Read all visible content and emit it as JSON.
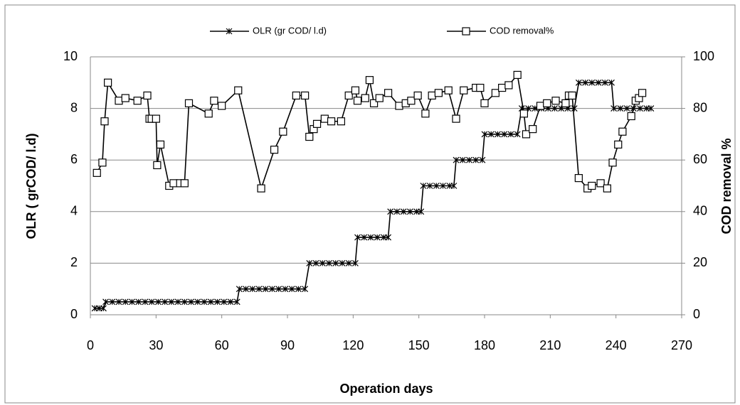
{
  "chart_data": {
    "type": "line",
    "xlabel": "Operation days",
    "ylabel": "OLR ( grCOD/ l.d)",
    "y2label": "COD removal %",
    "xlim": [
      0,
      270
    ],
    "xticks": [
      0,
      30,
      60,
      90,
      120,
      150,
      180,
      210,
      240,
      270
    ],
    "ylim": [
      0,
      10
    ],
    "yticks": [
      0,
      2,
      4,
      6,
      8,
      10
    ],
    "y2lim": [
      0,
      100
    ],
    "y2ticks": [
      0,
      20,
      40,
      60,
      80,
      100
    ],
    "grid": true,
    "legend": "top",
    "series": [
      {
        "name": "OLR (gr COD/ l.d)",
        "color": "#000000",
        "marker": "x",
        "x": [
          2,
          4,
          6,
          7,
          10,
          13,
          16,
          19,
          22,
          25,
          28,
          31,
          34,
          37,
          40,
          43,
          46,
          49,
          52,
          55,
          58,
          61,
          64,
          67,
          68,
          71,
          74,
          77,
          80,
          83,
          86,
          89,
          92,
          95,
          98,
          100,
          103,
          106,
          109,
          112,
          115,
          118,
          121,
          122,
          125,
          128,
          131,
          134,
          136,
          137,
          140,
          143,
          146,
          149,
          151,
          152,
          155,
          158,
          161,
          164,
          166,
          167,
          170,
          173,
          176,
          179,
          180,
          183,
          186,
          189,
          192,
          195,
          197,
          200,
          203,
          206,
          209,
          212,
          215,
          218,
          221,
          223,
          226,
          229,
          232,
          235,
          238,
          239,
          242,
          245,
          248,
          251,
          254,
          256
        ],
        "values": [
          0.25,
          0.25,
          0.25,
          0.5,
          0.5,
          0.5,
          0.5,
          0.5,
          0.5,
          0.5,
          0.5,
          0.5,
          0.5,
          0.5,
          0.5,
          0.5,
          0.5,
          0.5,
          0.5,
          0.5,
          0.5,
          0.5,
          0.5,
          0.5,
          1,
          1,
          1,
          1,
          1,
          1,
          1,
          1,
          1,
          1,
          1,
          2,
          2,
          2,
          2,
          2,
          2,
          2,
          2,
          3,
          3,
          3,
          3,
          3,
          3,
          4,
          4,
          4,
          4,
          4,
          4,
          5,
          5,
          5,
          5,
          5,
          5,
          6,
          6,
          6,
          6,
          6,
          7,
          7,
          7,
          7,
          7,
          7,
          8,
          8,
          8,
          8,
          8,
          8,
          8,
          8,
          8,
          9,
          9,
          9,
          9,
          9,
          9,
          8,
          8,
          8,
          8,
          8,
          8,
          8
        ]
      },
      {
        "name": "COD removal%",
        "color": "#000000",
        "marker": "square",
        "axis": "y2",
        "x": [
          3,
          5.5,
          6.5,
          8,
          13,
          16,
          21.5,
          26,
          27,
          28,
          30,
          30.5,
          32,
          36,
          38,
          41,
          43,
          45,
          54,
          56.5,
          60,
          67.5,
          78,
          84,
          88,
          94,
          98,
          100,
          102,
          103.5,
          107,
          110,
          114.5,
          118,
          121,
          122,
          125.5,
          127.5,
          129.5,
          132,
          136,
          141,
          144,
          146.5,
          149.5,
          153,
          156,
          159,
          163.5,
          167,
          170.5,
          176,
          178,
          180,
          185,
          188,
          191,
          195,
          198,
          199,
          202,
          205.5,
          208.5,
          212.5,
          217,
          218.5,
          220,
          223,
          227,
          229,
          233,
          236,
          238.5,
          241,
          243,
          247,
          249,
          250.5,
          252
        ],
        "values": [
          55,
          59,
          75,
          90,
          83,
          84,
          83,
          85,
          76,
          76,
          76,
          58,
          66,
          50,
          51,
          51,
          51,
          82,
          78,
          83,
          81,
          87,
          49,
          64,
          71,
          85,
          85,
          69,
          72,
          74,
          76,
          75,
          75,
          85,
          87,
          83,
          84,
          91,
          82,
          84,
          86,
          81,
          82,
          83,
          85,
          78,
          85,
          86,
          87,
          76,
          87,
          88,
          88,
          82,
          86,
          88,
          89,
          93,
          78,
          70,
          72,
          81,
          82,
          83,
          82,
          85,
          85,
          53,
          49,
          50,
          51,
          49,
          59,
          66,
          71,
          77,
          83,
          84,
          86
        ]
      }
    ]
  }
}
